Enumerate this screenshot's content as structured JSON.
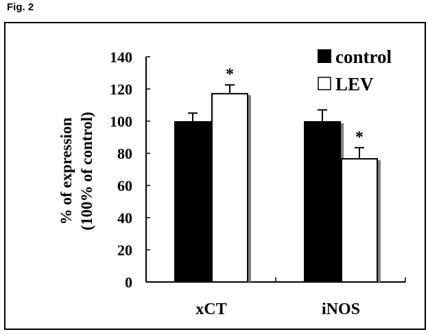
{
  "figure_label": "Fig. 2",
  "chart_data": {
    "type": "bar",
    "title": "",
    "xlabel": "",
    "ylabel_lines": [
      "% of expression",
      "(100% of control)"
    ],
    "categories": [
      "xCT",
      "iNOS"
    ],
    "series": [
      {
        "name": "control",
        "values": [
          100,
          100
        ],
        "errors": [
          5,
          7
        ],
        "color": "#000000",
        "significant": [
          false,
          false
        ]
      },
      {
        "name": "LEV",
        "values": [
          117.5,
          77
        ],
        "errors": [
          5,
          6.5
        ],
        "color": "#ffffff",
        "significant": [
          true,
          true
        ]
      }
    ],
    "significance_marker": "*",
    "ylim": [
      0,
      140
    ],
    "yticks": [
      0,
      20,
      40,
      60,
      80,
      100,
      120,
      140
    ],
    "grid": false,
    "legend_position": "top-right"
  }
}
